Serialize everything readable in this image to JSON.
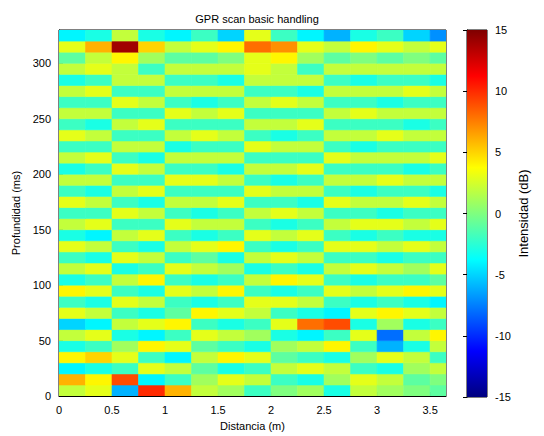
{
  "chart_data": {
    "type": "heatmap",
    "title": "GPR scan basic handling",
    "x_label": "Distancia (m)",
    "y_label": "Profundidad (ms)",
    "xlim": [
      0,
      3.65
    ],
    "ylim": [
      0,
      330
    ],
    "xticks": [
      0,
      0.5,
      1,
      1.5,
      2,
      2.5,
      3,
      3.5
    ],
    "yticks": [
      0,
      50,
      100,
      150,
      200,
      250,
      300
    ],
    "grid": false,
    "x_bins": [
      0,
      0.25,
      0.5,
      0.75,
      1,
      1.25,
      1.5,
      1.75,
      2,
      2.25,
      2.5,
      2.75,
      3,
      3.25,
      3.5,
      3.65
    ],
    "y_bins": [
      0,
      10,
      20,
      30,
      40,
      50,
      60,
      70,
      80,
      90,
      100,
      110,
      120,
      130,
      140,
      150,
      160,
      170,
      180,
      190,
      200,
      210,
      220,
      230,
      240,
      250,
      260,
      270,
      280,
      290,
      300,
      310,
      320,
      330
    ],
    "cells": [
      [
        2,
        3,
        -6,
        10,
        6,
        2,
        1,
        -2,
        0,
        1,
        -3,
        2,
        1,
        0,
        -1
      ],
      [
        6,
        4,
        9,
        -4,
        -2,
        1,
        3,
        2,
        -2,
        -3,
        1,
        3,
        2,
        -1,
        0
      ],
      [
        -4,
        -3,
        -2,
        3,
        2,
        -1,
        -3,
        -2,
        2,
        3,
        2,
        -2,
        -3,
        1,
        2
      ],
      [
        4,
        5,
        3,
        -2,
        -4,
        2,
        4,
        3,
        -1,
        -2,
        -3,
        1,
        3,
        2,
        -2
      ],
      [
        -3,
        -2,
        1,
        4,
        3,
        -1,
        -2,
        -3,
        1,
        2,
        4,
        -2,
        -6,
        -3,
        2
      ],
      [
        2,
        3,
        -3,
        -4,
        -2,
        3,
        2,
        1,
        -3,
        -4,
        -2,
        3,
        -8,
        2,
        4
      ],
      [
        -5,
        -4,
        2,
        3,
        4,
        -2,
        -3,
        -2,
        3,
        8,
        9,
        -3,
        1,
        -3,
        -2
      ],
      [
        3,
        2,
        -2,
        -3,
        -1,
        4,
        3,
        2,
        -2,
        -3,
        -4,
        3,
        4,
        3,
        2
      ],
      [
        -2,
        -3,
        3,
        2,
        -2,
        -3,
        -2,
        3,
        3,
        2,
        -2,
        -3,
        -2,
        -3,
        -4
      ],
      [
        4,
        3,
        -2,
        -3,
        3,
        2,
        4,
        -2,
        -3,
        -2,
        3,
        2,
        3,
        4,
        3
      ],
      [
        -3,
        -2,
        2,
        4,
        -2,
        -3,
        -2,
        2,
        4,
        3,
        -2,
        -3,
        -2,
        -2,
        -1
      ],
      [
        2,
        3,
        -3,
        -2,
        3,
        2,
        1,
        -3,
        -2,
        -3,
        2,
        3,
        2,
        1,
        3
      ],
      [
        -2,
        -3,
        3,
        2,
        -2,
        -1,
        -3,
        2,
        3,
        2,
        -2,
        -2,
        -3,
        -2,
        -2
      ],
      [
        3,
        2,
        -2,
        -3,
        2,
        3,
        4,
        -2,
        -3,
        -2,
        3,
        3,
        2,
        3,
        2
      ],
      [
        -3,
        -4,
        2,
        3,
        -2,
        -3,
        -2,
        3,
        2,
        3,
        -2,
        -3,
        -2,
        -3,
        -3
      ],
      [
        2,
        3,
        -2,
        -2,
        3,
        2,
        2,
        -2,
        -3,
        -2,
        2,
        3,
        3,
        2,
        3
      ],
      [
        -2,
        -2,
        3,
        2,
        -2,
        -3,
        -2,
        2,
        3,
        2,
        -2,
        -2,
        -3,
        -2,
        -2
      ],
      [
        3,
        2,
        -2,
        -3,
        2,
        2,
        3,
        -2,
        -2,
        -3,
        3,
        2,
        2,
        3,
        2
      ],
      [
        -2,
        -3,
        2,
        3,
        -2,
        -2,
        -2,
        3,
        2,
        2,
        -2,
        -3,
        -2,
        -2,
        -3
      ],
      [
        2,
        2,
        -2,
        -2,
        3,
        3,
        2,
        -2,
        -3,
        -2,
        2,
        2,
        3,
        2,
        2
      ],
      [
        -3,
        -2,
        3,
        2,
        -2,
        -2,
        -3,
        2,
        2,
        3,
        -2,
        -2,
        -2,
        -3,
        -2
      ],
      [
        2,
        3,
        -2,
        -3,
        2,
        2,
        2,
        -2,
        -2,
        -2,
        3,
        2,
        2,
        2,
        3
      ],
      [
        -2,
        -2,
        2,
        2,
        -3,
        -2,
        -2,
        3,
        2,
        2,
        -2,
        -3,
        -2,
        -2,
        -2
      ],
      [
        3,
        2,
        -2,
        -2,
        2,
        3,
        2,
        -2,
        -3,
        -2,
        2,
        2,
        3,
        2,
        2
      ],
      [
        -2,
        -3,
        2,
        3,
        -2,
        -2,
        -2,
        2,
        2,
        3,
        -2,
        -2,
        -2,
        -3,
        -2
      ],
      [
        2,
        2,
        -2,
        -2,
        3,
        2,
        3,
        -2,
        -2,
        -2,
        2,
        3,
        2,
        2,
        2
      ],
      [
        -2,
        -2,
        3,
        2,
        -2,
        -3,
        -2,
        2,
        3,
        2,
        -2,
        -2,
        -3,
        -2,
        -2
      ],
      [
        2,
        3,
        -2,
        -2,
        2,
        2,
        2,
        -2,
        -2,
        -3,
        2,
        2,
        2,
        3,
        2
      ],
      [
        -3,
        -2,
        2,
        2,
        -2,
        -2,
        -3,
        2,
        2,
        2,
        -2,
        -3,
        -2,
        -2,
        -3
      ],
      [
        2,
        3,
        2,
        -2,
        2,
        2,
        2,
        3,
        2,
        -2,
        2,
        2,
        2,
        2,
        2
      ],
      [
        -1,
        2,
        4,
        1,
        -1,
        -1,
        0,
        3,
        4,
        1,
        -1,
        0,
        -1,
        0,
        -1
      ],
      [
        3,
        6,
        14,
        5,
        2,
        3,
        4,
        8,
        7,
        3,
        2,
        4,
        3,
        2,
        3
      ],
      [
        -4,
        -3,
        2,
        -3,
        -4,
        -2,
        -5,
        3,
        -2,
        -4,
        -6,
        -3,
        -2,
        -5,
        -7
      ]
    ],
    "colorbar": {
      "label": "Intensidad (dB)",
      "range": [
        -15,
        15
      ],
      "ticks": [
        -15,
        -10,
        -5,
        0,
        5,
        10,
        15
      ]
    }
  }
}
